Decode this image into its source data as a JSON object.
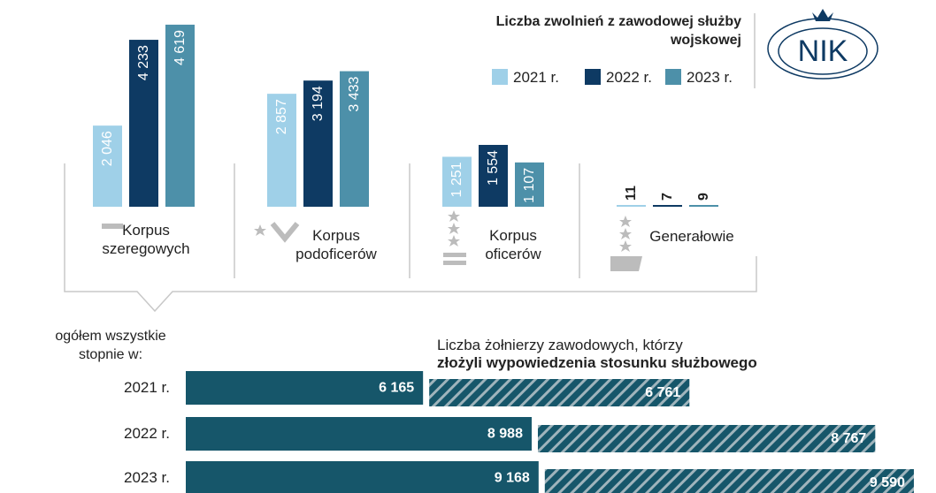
{
  "chart_data": [
    {
      "type": "bar",
      "title": "Liczba zwolnień z zawodowej służby wojskowej",
      "categories": [
        "Korpus szeregowych",
        "Korpus podoficerów",
        "Korpus oficerów",
        "Generałowie"
      ],
      "series": [
        {
          "name": "2021 r.",
          "color": "#9fd0e8",
          "values": [
            2046,
            2857,
            1251,
            11
          ],
          "value_labels": [
            "2 046",
            "2 857",
            "1 251",
            "11"
          ]
        },
        {
          "name": "2022 r.",
          "color": "#0e3a63",
          "values": [
            4233,
            3194,
            1554,
            7
          ],
          "value_labels": [
            "4 233",
            "3 194",
            "1 554",
            "7"
          ]
        },
        {
          "name": "2023 r.",
          "color": "#4d90a9",
          "values": [
            4619,
            3433,
            1107,
            9
          ],
          "value_labels": [
            "4 619",
            "3 433",
            "1 107",
            "9"
          ]
        }
      ],
      "ylim": [
        0,
        5000
      ],
      "legend": "top-right"
    },
    {
      "type": "hbar",
      "title": [
        "Liczba żołnierzy zawodowych, którzy",
        "złożyli wypowiedzenia stosunku służbowego"
      ],
      "label": "ogółem wszystkie stopnie w:",
      "categories": [
        "2021 r.",
        "2022 r.",
        "2023 r."
      ],
      "series": [
        {
          "color": "#16566a",
          "values": [
            6165,
            8988,
            9168
          ],
          "value_labels": [
            "6 165",
            "8 988",
            "9 168"
          ]
        },
        {
          "color": "#16566a",
          "pattern": "hatch",
          "values": [
            6761,
            8767,
            9590
          ],
          "value_labels": [
            "6 761",
            "8 767",
            "9 590"
          ]
        }
      ],
      "xlim": [
        0,
        19000
      ]
    }
  ]
}
